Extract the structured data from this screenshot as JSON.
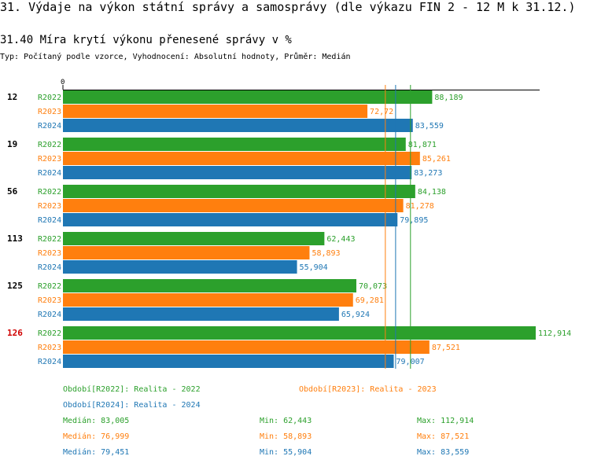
{
  "title": "31. Výdaje na výkon státní správy a samosprávy (dle výkazu FIN 2 - 12 M k 31.12.)",
  "subtitle": "31.40 Míra krytí výkonu přenesené správy v %",
  "typeline": "Typ: Počítaný podle vzorce, Vyhodnocení: Absolutní hodnoty, Průměr: Medián",
  "colors": {
    "R2022": "#2ca02c",
    "R2023": "#ff7f0e",
    "R2024": "#1f77b4",
    "highlight": "#d00000",
    "axis": "#000000"
  },
  "chart_data": {
    "type": "bar",
    "orientation": "horizontal",
    "axis_zero_label": "0",
    "xlim": [
      0,
      112.914
    ],
    "series_names": [
      "R2022",
      "R2023",
      "R2024"
    ],
    "groups": [
      {
        "label": "12",
        "highlight": false,
        "values": [
          88.189,
          72.72,
          83.559
        ],
        "value_labels": [
          "88,189",
          "72,72",
          "83,559"
        ]
      },
      {
        "label": "19",
        "highlight": false,
        "values": [
          81.871,
          85.261,
          83.273
        ],
        "value_labels": [
          "81,871",
          "85,261",
          "83,273"
        ]
      },
      {
        "label": "56",
        "highlight": false,
        "values": [
          84.138,
          81.278,
          79.895
        ],
        "value_labels": [
          "84,138",
          "81,278",
          "79,895"
        ]
      },
      {
        "label": "113",
        "highlight": false,
        "values": [
          62.443,
          58.893,
          55.904
        ],
        "value_labels": [
          "62,443",
          "58,893",
          "55,904"
        ]
      },
      {
        "label": "125",
        "highlight": false,
        "values": [
          70.073,
          69.281,
          65.924
        ],
        "value_labels": [
          "70,073",
          "69,281",
          "65,924"
        ]
      },
      {
        "label": "126",
        "highlight": true,
        "values": [
          112.914,
          87.521,
          79.007
        ],
        "value_labels": [
          "112,914",
          "87,521",
          "79,007"
        ]
      }
    ],
    "median_lines": [
      {
        "series": "R2022",
        "value": 83.005
      },
      {
        "series": "R2023",
        "value": 76.999
      },
      {
        "series": "R2024",
        "value": 79.451
      }
    ]
  },
  "legend": {
    "period_2022": "Období[R2022]: Realita - 2022",
    "period_2023": "Období[R2023]: Realita - 2023",
    "period_2024": "Období[R2024]: Realita - 2024",
    "stats": [
      {
        "median": "Medián: 83,005",
        "min": "Min: 62,443",
        "max": "Max: 112,914"
      },
      {
        "median": "Medián: 76,999",
        "min": "Min: 58,893",
        "max": "Max: 87,521"
      },
      {
        "median": "Medián: 79,451",
        "min": "Min: 55,904",
        "max": "Max: 83,559"
      }
    ]
  }
}
